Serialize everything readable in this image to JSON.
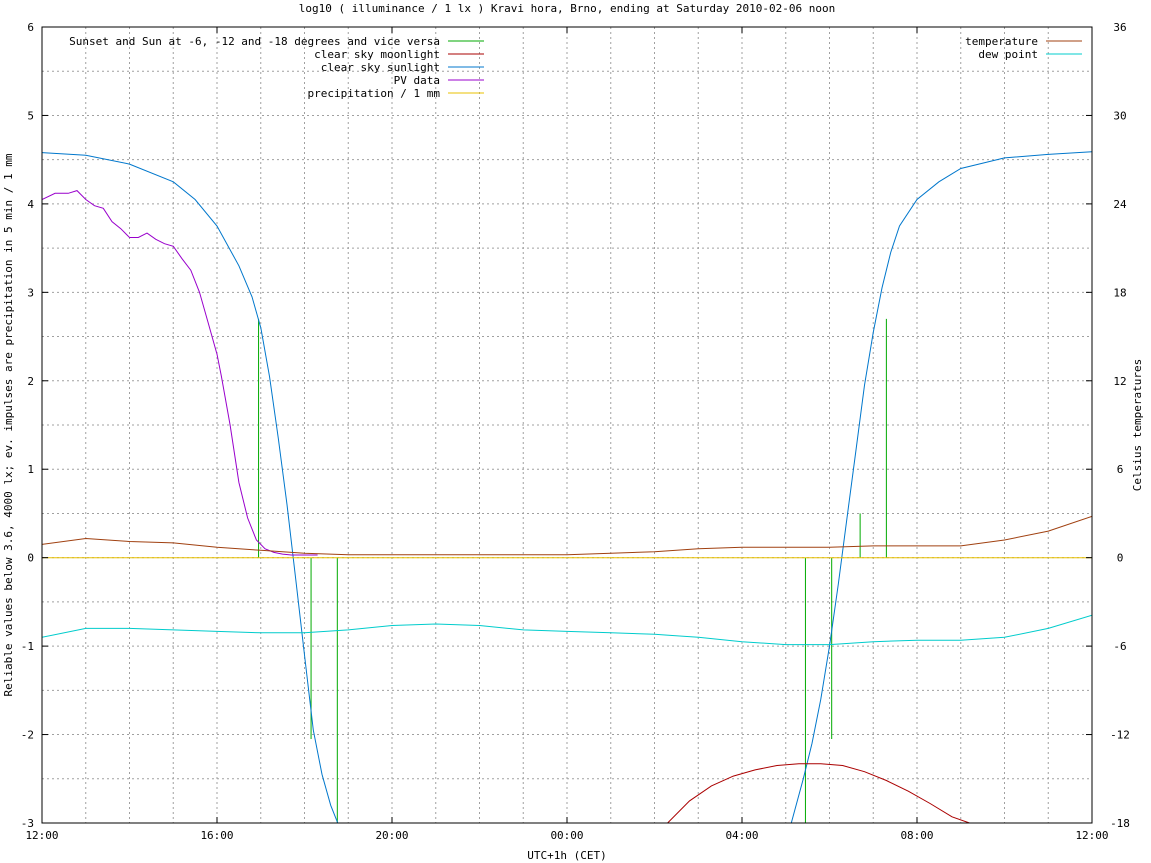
{
  "chart_data": {
    "type": "line",
    "title": "log10 ( illuminance / 1 lx ) Kravi hora, Brno, ending at Saturday 2010-02-06 noon",
    "xlabel": "UTC+1h (CET)",
    "ylabel": "Reliable values below 3.6, 4000 lx; ev. impulses are precipitation in 5 min / 1 mm",
    "y2label": "Celsius temperatures",
    "x_unit": "hours since 12:00 (CET)",
    "xlim": [
      0,
      24
    ],
    "ylim": [
      -3,
      6
    ],
    "y2lim": [
      -18,
      36
    ],
    "grid": true,
    "x_ticks": [
      {
        "v": 0,
        "label": "12:00"
      },
      {
        "v": 4,
        "label": "16:00"
      },
      {
        "v": 8,
        "label": "20:00"
      },
      {
        "v": 12,
        "label": "00:00"
      },
      {
        "v": 16,
        "label": "04:00"
      },
      {
        "v": 20,
        "label": "08:00"
      },
      {
        "v": 24,
        "label": "12:00"
      }
    ],
    "y_ticks": [
      {
        "v": -3,
        "label": "-3"
      },
      {
        "v": -2,
        "label": "-2"
      },
      {
        "v": -1,
        "label": "-1"
      },
      {
        "v": 0,
        "label": "0"
      },
      {
        "v": 1,
        "label": "1"
      },
      {
        "v": 2,
        "label": "2"
      },
      {
        "v": 3,
        "label": "3"
      },
      {
        "v": 4,
        "label": "4"
      },
      {
        "v": 5,
        "label": "5"
      },
      {
        "v": 6,
        "label": "6"
      }
    ],
    "y2_ticks": [
      {
        "v": -18,
        "label": "-18"
      },
      {
        "v": -12,
        "label": "-12"
      },
      {
        "v": -6,
        "label": "-6"
      },
      {
        "v": 0,
        "label": "0"
      },
      {
        "v": 6,
        "label": "6"
      },
      {
        "v": 12,
        "label": "12"
      },
      {
        "v": 18,
        "label": "18"
      },
      {
        "v": 24,
        "label": "24"
      },
      {
        "v": 30,
        "label": "30"
      },
      {
        "v": 36,
        "label": "36"
      }
    ],
    "legend_left": [
      {
        "name": "Sunset and Sun at -6, -12 and -18 degrees and vice versa",
        "color": "#00aa00"
      },
      {
        "name": "clear sky moonlight",
        "color": "#aa0000"
      },
      {
        "name": "clear sky sunlight",
        "color": "#0077cc"
      },
      {
        "name": "PV data",
        "color": "#9900cc"
      },
      {
        "name": "precipitation / 1 mm",
        "color": "#e8c000"
      }
    ],
    "legend_right": [
      {
        "name": "temperature",
        "color": "#a04010"
      },
      {
        "name": "dew point",
        "color": "#00cccc"
      }
    ],
    "sun_events": [
      {
        "x": 4.95,
        "y": 2.7
      },
      {
        "x": 6.15,
        "y": -2.05
      },
      {
        "x": 6.75,
        "y": -3
      },
      {
        "x": 17.45,
        "y": -3
      },
      {
        "x": 18.05,
        "y": -2.05
      },
      {
        "x": 18.7,
        "y": 0.5
      },
      {
        "x": 19.3,
        "y": 2.7
      }
    ],
    "series": [
      {
        "name": "clear sky sunlight",
        "color": "#0077cc",
        "axis": "y",
        "x": [
          0,
          1,
          2,
          3,
          3.5,
          4,
          4.5,
          4.8,
          5,
          5.2,
          5.4,
          5.6,
          5.8,
          6,
          6.2,
          6.4,
          6.6,
          6.8,
          17.1,
          17.4,
          17.6,
          17.8,
          18,
          18.2,
          18.4,
          18.6,
          18.8,
          19,
          19.2,
          19.4,
          19.6,
          20,
          20.5,
          21,
          22,
          23,
          24
        ],
        "y": [
          4.58,
          4.55,
          4.45,
          4.25,
          4.05,
          3.75,
          3.3,
          2.95,
          2.6,
          2.05,
          1.35,
          0.6,
          -0.25,
          -1.1,
          -1.95,
          -2.45,
          -2.8,
          -3.05,
          -3.05,
          -2.5,
          -2.1,
          -1.6,
          -1.0,
          -0.3,
          0.45,
          1.2,
          1.95,
          2.55,
          3.05,
          3.45,
          3.75,
          4.05,
          4.25,
          4.4,
          4.52,
          4.56,
          4.59
        ]
      },
      {
        "name": "clear sky moonlight",
        "color": "#aa0000",
        "axis": "y",
        "x": [
          14.3,
          14.8,
          15.3,
          15.8,
          16.3,
          16.8,
          17.3,
          17.8,
          18.3,
          18.8,
          19.3,
          19.8,
          20.3,
          20.8,
          21.2
        ],
        "y": [
          -3.0,
          -2.75,
          -2.58,
          -2.47,
          -2.4,
          -2.35,
          -2.33,
          -2.33,
          -2.35,
          -2.42,
          -2.52,
          -2.64,
          -2.78,
          -2.93,
          -3.0
        ]
      },
      {
        "name": "PV data",
        "color": "#9900cc",
        "axis": "y",
        "x": [
          0,
          0.3,
          0.6,
          0.8,
          1.0,
          1.2,
          1.4,
          1.6,
          1.8,
          2.0,
          2.2,
          2.4,
          2.6,
          2.8,
          3.0,
          3.2,
          3.4,
          3.6,
          3.8,
          4.0,
          4.1,
          4.3,
          4.5,
          4.7,
          4.9,
          5.1,
          5.3,
          5.5,
          5.7,
          5.9,
          6.1,
          6.3
        ],
        "y": [
          4.05,
          4.12,
          4.12,
          4.15,
          4.05,
          3.98,
          3.95,
          3.8,
          3.72,
          3.62,
          3.62,
          3.67,
          3.6,
          3.55,
          3.52,
          3.38,
          3.25,
          3.0,
          2.65,
          2.3,
          2.05,
          1.5,
          0.85,
          0.45,
          0.2,
          0.1,
          0.06,
          0.04,
          0.03,
          0.03,
          0.03,
          0.03
        ]
      },
      {
        "name": "precipitation / 1 mm",
        "color": "#e8c000",
        "axis": "y",
        "x": [
          0,
          24
        ],
        "y": [
          0,
          0
        ]
      },
      {
        "name": "temperature",
        "color": "#a04010",
        "axis": "y2",
        "x": [
          0,
          1,
          2,
          3,
          4,
          5,
          6,
          7,
          8,
          9,
          10,
          11,
          12,
          13,
          14,
          15,
          16,
          17,
          18,
          19,
          20,
          21,
          22,
          23,
          24
        ],
        "y": [
          0.9,
          1.3,
          1.1,
          1.0,
          0.7,
          0.5,
          0.3,
          0.2,
          0.2,
          0.2,
          0.2,
          0.2,
          0.2,
          0.3,
          0.4,
          0.6,
          0.7,
          0.7,
          0.7,
          0.8,
          0.8,
          0.8,
          1.2,
          1.8,
          2.8
        ]
      },
      {
        "name": "dew point",
        "color": "#00cccc",
        "axis": "y2",
        "x": [
          0,
          1,
          2,
          3,
          4,
          5,
          6,
          7,
          8,
          9,
          10,
          11,
          12,
          13,
          14,
          15,
          16,
          17,
          18,
          19,
          20,
          21,
          22,
          23,
          24
        ],
        "y": [
          -5.4,
          -4.8,
          -4.8,
          -4.9,
          -5.0,
          -5.1,
          -5.1,
          -4.9,
          -4.6,
          -4.5,
          -4.6,
          -4.9,
          -5.0,
          -5.1,
          -5.2,
          -5.4,
          -5.7,
          -5.9,
          -5.9,
          -5.7,
          -5.6,
          -5.6,
          -5.4,
          -4.8,
          -3.9
        ]
      }
    ]
  }
}
